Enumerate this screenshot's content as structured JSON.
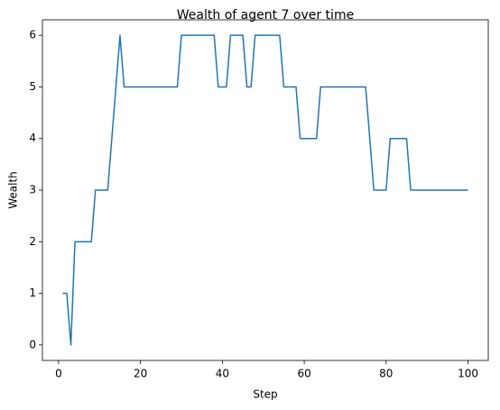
{
  "chart_data": {
    "type": "line",
    "title": "Wealth of agent 7 over time",
    "x_label": "Step",
    "y_label": "Wealth",
    "x": [
      1,
      2,
      3,
      4,
      5,
      6,
      7,
      8,
      9,
      10,
      11,
      12,
      13,
      14,
      15,
      16,
      17,
      18,
      19,
      20,
      21,
      22,
      23,
      24,
      25,
      26,
      27,
      28,
      29,
      30,
      31,
      32,
      33,
      34,
      35,
      36,
      37,
      38,
      39,
      40,
      41,
      42,
      43,
      44,
      45,
      46,
      47,
      48,
      49,
      50,
      51,
      52,
      53,
      54,
      55,
      56,
      57,
      58,
      59,
      60,
      61,
      62,
      63,
      64,
      65,
      66,
      67,
      68,
      69,
      70,
      71,
      72,
      73,
      74,
      75,
      76,
      77,
      78,
      79,
      80,
      81,
      82,
      83,
      84,
      85,
      86,
      87,
      88,
      89,
      90,
      91,
      92,
      93,
      94,
      95,
      96,
      97,
      98,
      99,
      100
    ],
    "values": [
      1,
      1,
      0,
      2,
      2,
      2,
      2,
      2,
      3,
      3,
      3,
      3,
      4,
      5,
      6,
      5,
      5,
      5,
      5,
      5,
      5,
      5,
      5,
      5,
      5,
      5,
      5,
      5,
      5,
      6,
      6,
      6,
      6,
      6,
      6,
      6,
      6,
      6,
      5,
      5,
      5,
      6,
      6,
      6,
      6,
      5,
      5,
      6,
      6,
      6,
      6,
      6,
      6,
      6,
      5,
      5,
      5,
      5,
      4,
      4,
      4,
      4,
      4,
      5,
      5,
      5,
      5,
      5,
      5,
      5,
      5,
      5,
      5,
      5,
      5,
      4,
      3,
      3,
      3,
      3,
      4,
      4,
      4,
      4,
      4,
      3,
      3,
      3,
      3,
      3,
      3,
      3,
      3,
      3,
      3,
      3,
      3,
      3,
      3,
      3
    ],
    "color": "#1f77b4",
    "xlim": [
      -3.95,
      104.95
    ],
    "xticks": [
      0,
      20,
      40,
      60,
      80,
      100
    ],
    "ylim": [
      -0.3,
      6.3
    ],
    "yticks": [
      0,
      1,
      2,
      3,
      4,
      5,
      6
    ]
  }
}
